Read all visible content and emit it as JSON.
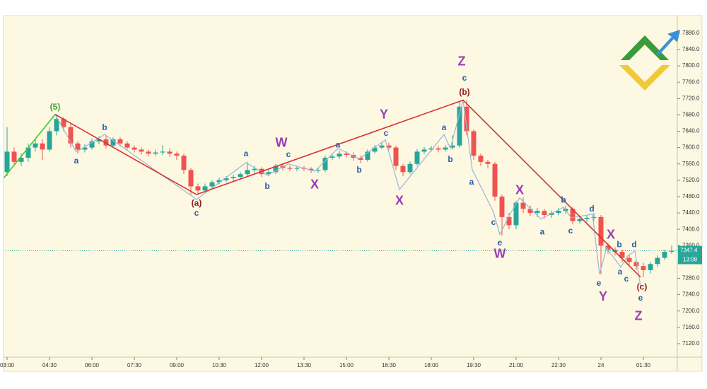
{
  "chart_data": {
    "type": "candlestick",
    "colors": {
      "up": "#26a69a",
      "down": "#ef5350"
    },
    "xlim": [
      -0.125,
      23.7
    ],
    "ylim": [
      7087,
      7923
    ],
    "xticks": [
      {
        "value": 0,
        "label": "03:00"
      },
      {
        "value": 1.5,
        "label": "04:30"
      },
      {
        "value": 3,
        "label": "06:00"
      },
      {
        "value": 4.5,
        "label": "07:30"
      },
      {
        "value": 6,
        "label": "09:00"
      },
      {
        "value": 7.5,
        "label": "10:30"
      },
      {
        "value": 9,
        "label": "12:00"
      },
      {
        "value": 10.5,
        "label": "13:30"
      },
      {
        "value": 12,
        "label": "15:00"
      },
      {
        "value": 13.5,
        "label": "16:30"
      },
      {
        "value": 15,
        "label": "18:00"
      },
      {
        "value": 16.5,
        "label": "19:30"
      },
      {
        "value": 18,
        "label": "21:00"
      },
      {
        "value": 19.5,
        "label": "22:30"
      },
      {
        "value": 21,
        "label": "24"
      },
      {
        "value": 22.5,
        "label": "01:30"
      }
    ],
    "yticks": [
      {
        "value": 7880,
        "label": "7880.0"
      },
      {
        "value": 7840,
        "label": "7840.0"
      },
      {
        "value": 7800,
        "label": "7800.0"
      },
      {
        "value": 7760,
        "label": "7760.0"
      },
      {
        "value": 7720,
        "label": "7720.0"
      },
      {
        "value": 7680,
        "label": "7680.0"
      },
      {
        "value": 7640,
        "label": "7640.0"
      },
      {
        "value": 7600,
        "label": "7600.0"
      },
      {
        "value": 7560,
        "label": "7560.0"
      },
      {
        "value": 7520,
        "label": "7520.0"
      },
      {
        "value": 7480,
        "label": "7480.0"
      },
      {
        "value": 7440,
        "label": "7440.0"
      },
      {
        "value": 7400,
        "label": "7400.0"
      },
      {
        "value": 7360,
        "label": "7360.0"
      },
      {
        "value": 7320,
        "label": "7320.0"
      },
      {
        "value": 7280,
        "label": "7280.0"
      },
      {
        "value": 7240,
        "label": "7240.0"
      },
      {
        "value": 7200,
        "label": "7200.0"
      },
      {
        "value": 7160,
        "label": "7160.0"
      },
      {
        "value": 7120,
        "label": "7120.0"
      }
    ],
    "x": [
      0,
      0.25,
      0.5,
      0.75,
      1,
      1.25,
      1.5,
      1.75,
      2,
      2.25,
      2.5,
      2.75,
      3,
      3.25,
      3.5,
      3.75,
      4,
      4.25,
      4.5,
      4.75,
      5,
      5.25,
      5.5,
      5.75,
      6,
      6.25,
      6.5,
      6.75,
      7,
      7.25,
      7.5,
      7.75,
      8,
      8.25,
      8.5,
      8.75,
      9,
      9.25,
      9.5,
      9.75,
      10,
      10.25,
      10.5,
      10.75,
      11,
      11.25,
      11.5,
      11.75,
      12,
      12.25,
      12.5,
      12.75,
      13,
      13.25,
      13.5,
      13.75,
      14,
      14.25,
      14.5,
      14.75,
      15,
      15.25,
      15.5,
      15.75,
      16,
      16.25,
      16.5,
      16.75,
      17,
      17.25,
      17.5,
      17.75,
      18,
      18.25,
      18.5,
      18.75,
      19,
      19.25,
      19.5,
      19.75,
      20,
      20.25,
      20.5,
      20.75,
      21,
      21.25,
      21.5,
      21.75,
      22,
      22.25,
      22.5,
      22.75,
      23,
      23.25,
      23.5
    ],
    "open": [
      7540,
      7590,
      7565,
      7575,
      7600,
      7610,
      7595,
      7640,
      7670,
      7650,
      7610,
      7595,
      7600,
      7615,
      7620,
      7605,
      7620,
      7610,
      7600,
      7595,
      7590,
      7585,
      7588,
      7590,
      7585,
      7580,
      7545,
      7505,
      7495,
      7505,
      7515,
      7520,
      7525,
      7528,
      7535,
      7545,
      7548,
      7535,
      7540,
      7555,
      7550,
      7548,
      7550,
      7548,
      7545,
      7545,
      7575,
      7578,
      7585,
      7582,
      7575,
      7570,
      7590,
      7600,
      7605,
      7600,
      7555,
      7540,
      7560,
      7590,
      7595,
      7598,
      7595,
      7600,
      7605,
      7700,
      7640,
      7580,
      7565,
      7560,
      7480,
      7430,
      7410,
      7465,
      7450,
      7440,
      7445,
      7435,
      7440,
      7445,
      7450,
      7420,
      7425,
      7428,
      7430,
      7360,
      7350,
      7345,
      7330,
      7320,
      7310,
      7300,
      7315,
      7330,
      7345
    ],
    "high": [
      7650,
      7600,
      7585,
      7610,
      7620,
      7620,
      7650,
      7682,
      7675,
      7660,
      7615,
      7608,
      7622,
      7628,
      7630,
      7625,
      7625,
      7615,
      7605,
      7600,
      7595,
      7595,
      7605,
      7598,
      7590,
      7585,
      7550,
      7512,
      7512,
      7520,
      7526,
      7530,
      7534,
      7540,
      7565,
      7555,
      7552,
      7546,
      7560,
      7560,
      7556,
      7555,
      7555,
      7552,
      7550,
      7580,
      7584,
      7592,
      7590,
      7588,
      7580,
      7596,
      7606,
      7614,
      7612,
      7605,
      7560,
      7566,
      7596,
      7602,
      7604,
      7604,
      7606,
      7630,
      7712,
      7716,
      7645,
      7585,
      7570,
      7565,
      7485,
      7440,
      7470,
      7478,
      7458,
      7452,
      7450,
      7446,
      7452,
      7458,
      7455,
      7432,
      7434,
      7440,
      7435,
      7366,
      7356,
      7350,
      7338,
      7326,
      7318,
      7320,
      7336,
      7350,
      7360
    ],
    "low": [
      7530,
      7555,
      7555,
      7565,
      7590,
      7570,
      7590,
      7630,
      7640,
      7600,
      7585,
      7588,
      7595,
      7608,
      7598,
      7600,
      7602,
      7595,
      7588,
      7583,
      7578,
      7580,
      7582,
      7578,
      7570,
      7535,
      7485,
      7485,
      7488,
      7500,
      7510,
      7515,
      7518,
      7522,
      7530,
      7538,
      7528,
      7530,
      7535,
      7544,
      7542,
      7542,
      7542,
      7538,
      7538,
      7540,
      7570,
      7572,
      7576,
      7568,
      7562,
      7565,
      7585,
      7596,
      7594,
      7545,
      7530,
      7535,
      7555,
      7584,
      7590,
      7588,
      7590,
      7595,
      7600,
      7630,
      7570,
      7555,
      7550,
      7470,
      7385,
      7400,
      7400,
      7440,
      7432,
      7430,
      7426,
      7428,
      7434,
      7438,
      7412,
      7414,
      7418,
      7420,
      7290,
      7340,
      7336,
      7320,
      7310,
      7300,
      7283,
      7292,
      7308,
      7325,
      7340
    ],
    "close": [
      7590,
      7565,
      7575,
      7600,
      7610,
      7595,
      7640,
      7670,
      7650,
      7610,
      7595,
      7600,
      7615,
      7620,
      7605,
      7620,
      7610,
      7600,
      7595,
      7590,
      7585,
      7588,
      7590,
      7585,
      7580,
      7545,
      7505,
      7495,
      7505,
      7515,
      7520,
      7525,
      7528,
      7535,
      7545,
      7548,
      7535,
      7540,
      7555,
      7550,
      7548,
      7550,
      7548,
      7545,
      7545,
      7575,
      7578,
      7585,
      7582,
      7575,
      7570,
      7590,
      7600,
      7605,
      7600,
      7555,
      7540,
      7560,
      7590,
      7595,
      7598,
      7595,
      7600,
      7605,
      7700,
      7640,
      7580,
      7565,
      7560,
      7480,
      7430,
      7410,
      7465,
      7450,
      7440,
      7445,
      7435,
      7440,
      7445,
      7450,
      7420,
      7425,
      7428,
      7430,
      7360,
      7350,
      7345,
      7330,
      7320,
      7310,
      7300,
      7315,
      7330,
      7345,
      7347.4
    ],
    "last_price": 7347.4,
    "countdown": "13:08",
    "wave_lines": [
      {
        "color": "#9fb4d4",
        "x": [
          1.7,
          2.45,
          3.45,
          6.7,
          8.45,
          9.2,
          9.95,
          10.875,
          11.7,
          12.45,
          13.375,
          13.875,
          15.45,
          15.675,
          16.125,
          16.45,
          17.2,
          17.425,
          17.75,
          18.125,
          18.875,
          19.675,
          19.95,
          20.7,
          20.95,
          21.2,
          21.7,
          21.95,
          22.2,
          22.4
        ],
        "y": [
          7681,
          7589,
          7632,
          7473,
          7563,
          7532,
          7560,
          7542,
          7598,
          7572,
          7619,
          7497,
          7632,
          7598,
          7716,
          7546,
          7442,
          7387,
          7433,
          7477,
          7425,
          7454,
          7428,
          7437,
          7290,
          7355,
          7307,
          7335,
          7347,
          7260
        ]
      },
      {
        "color": "#45c93a",
        "x": [
          -0.125,
          1.7
        ],
        "y": [
          7525,
          7681
        ]
      },
      {
        "color": "#d8332f",
        "x": [
          1.7,
          6.7,
          16.125,
          22.4
        ],
        "y": [
          7681,
          7485,
          7716,
          7283
        ]
      }
    ],
    "annotations": [
      {
        "text": "(5)",
        "x": 1.7,
        "y": 7698,
        "color": "#3fa535"
      },
      {
        "text": "a",
        "x": 2.45,
        "y": 7567,
        "color": "#2a5fa8"
      },
      {
        "text": "b",
        "x": 3.45,
        "y": 7648,
        "color": "#2a5fa8"
      },
      {
        "text": "(a)",
        "x": 6.7,
        "y": 7463,
        "color": "#8b1a1a"
      },
      {
        "text": "c",
        "x": 6.7,
        "y": 7439,
        "color": "#2a5fa8"
      },
      {
        "text": "a",
        "x": 8.45,
        "y": 7584,
        "color": "#2a5fa8"
      },
      {
        "text": "b",
        "x": 9.2,
        "y": 7504,
        "color": "#2a5fa8"
      },
      {
        "text": "W",
        "x": 9.7,
        "y": 7610,
        "color": "#9b3fb5"
      },
      {
        "text": "c",
        "x": 9.95,
        "y": 7582,
        "color": "#2a5fa8"
      },
      {
        "text": "X",
        "x": 10.875,
        "y": 7508,
        "color": "#9b3fb5"
      },
      {
        "text": "a",
        "x": 11.7,
        "y": 7606,
        "color": "#2a5fa8"
      },
      {
        "text": "b",
        "x": 12.45,
        "y": 7544,
        "color": "#2a5fa8"
      },
      {
        "text": "Y",
        "x": 13.325,
        "y": 7679,
        "color": "#9b3fb5"
      },
      {
        "text": "c",
        "x": 13.4,
        "y": 7634,
        "color": "#2a5fa8"
      },
      {
        "text": "X",
        "x": 13.875,
        "y": 7468,
        "color": "#9b3fb5"
      },
      {
        "text": "a",
        "x": 15.45,
        "y": 7648,
        "color": "#2a5fa8"
      },
      {
        "text": "b",
        "x": 15.675,
        "y": 7570,
        "color": "#2a5fa8"
      },
      {
        "text": "Z",
        "x": 16.075,
        "y": 7809,
        "color": "#9b3fb5"
      },
      {
        "text": "c",
        "x": 16.175,
        "y": 7769,
        "color": "#2a5fa8"
      },
      {
        "text": "(b)",
        "x": 16.175,
        "y": 7735,
        "color": "#8b1a1a"
      },
      {
        "text": "a",
        "x": 16.425,
        "y": 7515,
        "color": "#2a5fa8"
      },
      {
        "text": "c",
        "x": 17.2,
        "y": 7416,
        "color": "#2a5fa8"
      },
      {
        "text": "e",
        "x": 17.425,
        "y": 7366,
        "color": "#2a5fa8"
      },
      {
        "text": "W",
        "x": 17.425,
        "y": 7338,
        "color": "#9b3fb5"
      },
      {
        "text": "X",
        "x": 18.125,
        "y": 7494,
        "color": "#9b3fb5"
      },
      {
        "text": "a",
        "x": 18.925,
        "y": 7393,
        "color": "#2a5fa8"
      },
      {
        "text": "b",
        "x": 19.675,
        "y": 7471,
        "color": "#2a5fa8"
      },
      {
        "text": "c",
        "x": 19.925,
        "y": 7395,
        "color": "#2a5fa8"
      },
      {
        "text": "d",
        "x": 20.675,
        "y": 7449,
        "color": "#2a5fa8"
      },
      {
        "text": "X",
        "x": 21.35,
        "y": 7385,
        "color": "#9b3fb5"
      },
      {
        "text": "b",
        "x": 21.65,
        "y": 7362,
        "color": "#2a5fa8"
      },
      {
        "text": "d",
        "x": 22.175,
        "y": 7362,
        "color": "#2a5fa8"
      },
      {
        "text": "a",
        "x": 21.675,
        "y": 7295,
        "color": "#2a5fa8"
      },
      {
        "text": "c",
        "x": 21.9,
        "y": 7278,
        "color": "#2a5fa8"
      },
      {
        "text": "e",
        "x": 20.925,
        "y": 7267,
        "color": "#2a5fa8"
      },
      {
        "text": "Y",
        "x": 21.075,
        "y": 7234,
        "color": "#9b3fb5"
      },
      {
        "text": "(c)",
        "x": 22.45,
        "y": 7258,
        "color": "#8b1a1a"
      },
      {
        "text": "e",
        "x": 22.4,
        "y": 7231,
        "color": "#2a5fa8"
      },
      {
        "text": "Z",
        "x": 22.325,
        "y": 7186,
        "color": "#9b3fb5"
      }
    ]
  }
}
